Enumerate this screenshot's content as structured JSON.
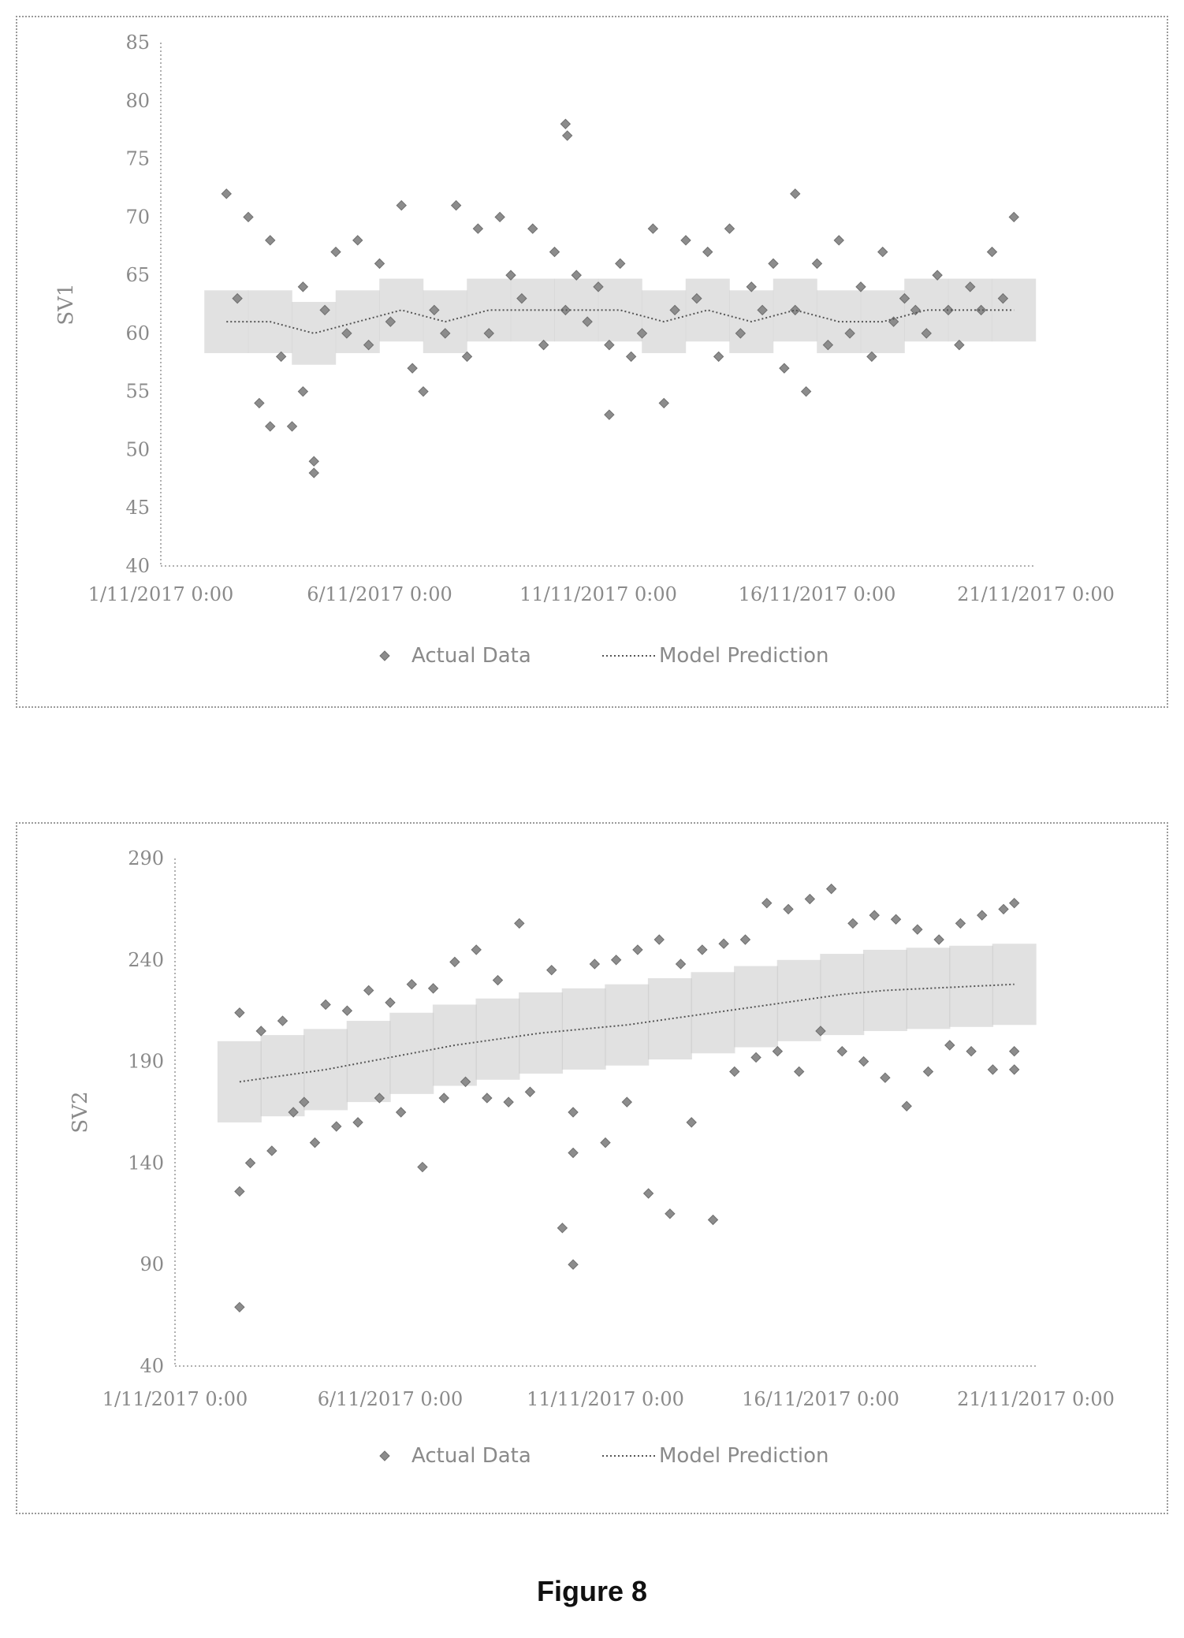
{
  "figure_caption": "Figure 8",
  "chart_data": [
    {
      "type": "scatter",
      "ylabel": "SV1",
      "xlabel": "",
      "ylim": [
        40,
        85
      ],
      "yticks": [
        40,
        45,
        50,
        55,
        60,
        65,
        70,
        75,
        80,
        85
      ],
      "xlim": [
        "2017-11-01",
        "2017-11-21"
      ],
      "xticks": [
        "1/11/2017 0:00",
        "6/11/2017 0:00",
        "11/11/2017 0:00",
        "16/11/2017 0:00",
        "21/11/2017 0:00"
      ],
      "grid": false,
      "legend": {
        "position": "bottom",
        "entries": [
          "Actual Data",
          "Model Prediction"
        ]
      },
      "series": [
        {
          "name": "Actual Data",
          "marker": "diamond",
          "x": [
            "2017-11-02 12:00",
            "2017-11-02 18:00",
            "2017-11-03 00:00",
            "2017-11-03 06:00",
            "2017-11-03 12:00",
            "2017-11-03 18:00",
            "2017-11-04 00:00",
            "2017-11-04 06:00",
            "2017-11-04 12:00",
            "2017-11-04 18:00",
            "2017-11-05 00:00",
            "2017-11-05 06:00",
            "2017-11-05 12:00",
            "2017-11-05 18:00",
            "2017-11-06 00:00",
            "2017-11-06 06:00",
            "2017-11-06 12:00",
            "2017-11-06 18:00",
            "2017-11-07 00:00",
            "2017-11-07 06:00",
            "2017-11-07 12:00",
            "2017-11-07 18:00",
            "2017-11-08 00:00",
            "2017-11-08 06:00",
            "2017-11-08 12:00",
            "2017-11-08 18:00",
            "2017-11-09 00:00",
            "2017-11-09 06:00",
            "2017-11-09 12:00",
            "2017-11-09 18:00",
            "2017-11-10 00:00",
            "2017-11-10 06:00",
            "2017-11-10 12:00",
            "2017-11-10 18:00",
            "2017-11-11 00:00",
            "2017-11-11 06:00",
            "2017-11-11 12:00",
            "2017-11-11 18:00",
            "2017-11-12 00:00",
            "2017-11-12 06:00",
            "2017-11-12 12:00",
            "2017-11-12 18:00",
            "2017-11-13 00:00",
            "2017-11-13 06:00",
            "2017-11-13 12:00",
            "2017-11-13 18:00",
            "2017-11-14 00:00",
            "2017-11-14 06:00",
            "2017-11-14 12:00",
            "2017-11-14 18:00",
            "2017-11-15 00:00",
            "2017-11-15 06:00",
            "2017-11-15 12:00",
            "2017-11-15 18:00",
            "2017-11-16 00:00",
            "2017-11-16 06:00",
            "2017-11-16 12:00",
            "2017-11-16 18:00",
            "2017-11-17 00:00",
            "2017-11-17 06:00",
            "2017-11-17 12:00",
            "2017-11-17 18:00",
            "2017-11-18 00:00",
            "2017-11-18 06:00",
            "2017-11-18 12:00",
            "2017-11-18 18:00",
            "2017-11-19 00:00",
            "2017-11-19 06:00",
            "2017-11-19 12:00",
            "2017-11-19 18:00",
            "2017-11-20 00:00",
            "2017-11-20 06:00",
            "2017-11-20 12:00",
            "2017-11-03 12:00",
            "2017-11-04 06:00",
            "2017-11-04 12:00",
            "2017-11-10 06:00",
            "2017-11-10 07:00",
            "2017-11-11 06:00",
            "2017-11-15 12:00"
          ],
          "y": [
            72,
            63,
            70,
            54,
            68,
            58,
            52,
            64,
            48,
            62,
            67,
            60,
            68,
            59,
            66,
            61,
            71,
            57,
            55,
            62,
            60,
            71,
            58,
            69,
            60,
            70,
            65,
            63,
            69,
            59,
            67,
            62,
            65,
            61,
            64,
            59,
            66,
            58,
            60,
            69,
            54,
            62,
            68,
            63,
            67,
            58,
            69,
            60,
            64,
            62,
            66,
            57,
            72,
            55,
            66,
            59,
            68,
            60,
            64,
            58,
            67,
            61,
            63,
            62,
            60,
            65,
            62,
            59,
            64,
            62,
            67,
            63,
            70,
            52,
            55,
            49,
            78,
            77,
            53,
            62
          ]
        },
        {
          "name": "Model Prediction",
          "line": "dotted",
          "x": [
            "2017-11-02 12:00",
            "2017-11-03 12:00",
            "2017-11-04 12:00",
            "2017-11-05 12:00",
            "2017-11-06 12:00",
            "2017-11-07 12:00",
            "2017-11-08 12:00",
            "2017-11-09 12:00",
            "2017-11-10 12:00",
            "2017-11-11 12:00",
            "2017-11-12 12:00",
            "2017-11-13 12:00",
            "2017-11-14 12:00",
            "2017-11-15 12:00",
            "2017-11-16 12:00",
            "2017-11-17 12:00",
            "2017-11-18 12:00",
            "2017-11-19 12:00",
            "2017-11-20 12:00"
          ],
          "y": [
            61,
            61,
            60,
            61,
            62,
            61,
            62,
            62,
            62,
            62,
            61,
            62,
            61,
            62,
            61,
            61,
            62,
            62,
            62
          ]
        }
      ]
    },
    {
      "type": "scatter",
      "ylabel": "SV2",
      "xlabel": "",
      "ylim": [
        40,
        290
      ],
      "yticks": [
        40,
        90,
        140,
        190,
        240,
        290
      ],
      "xlim": [
        "2017-11-01",
        "2017-11-21"
      ],
      "xticks": [
        "1/11/2017 0:00",
        "6/11/2017 0:00",
        "11/11/2017 0:00",
        "16/11/2017 0:00",
        "21/11/2017 0:00"
      ],
      "grid": false,
      "legend": {
        "position": "bottom",
        "entries": [
          "Actual Data",
          "Model Prediction"
        ]
      },
      "series": [
        {
          "name": "Actual Data",
          "marker": "diamond",
          "x": [
            "2017-11-02 12:00",
            "2017-11-02 12:00",
            "2017-11-02 12:00",
            "2017-11-02 18:00",
            "2017-11-03 00:00",
            "2017-11-03 06:00",
            "2017-11-03 12:00",
            "2017-11-03 18:00",
            "2017-11-04 00:00",
            "2017-11-04 06:00",
            "2017-11-04 12:00",
            "2017-11-04 18:00",
            "2017-11-05 00:00",
            "2017-11-05 06:00",
            "2017-11-05 12:00",
            "2017-11-05 18:00",
            "2017-11-06 00:00",
            "2017-11-06 06:00",
            "2017-11-06 12:00",
            "2017-11-06 18:00",
            "2017-11-07 00:00",
            "2017-11-07 06:00",
            "2017-11-07 12:00",
            "2017-11-07 18:00",
            "2017-11-08 00:00",
            "2017-11-08 06:00",
            "2017-11-08 12:00",
            "2017-11-08 18:00",
            "2017-11-09 00:00",
            "2017-11-09 06:00",
            "2017-11-09 18:00",
            "2017-11-10 00:00",
            "2017-11-10 06:00",
            "2017-11-10 06:00",
            "2017-11-10 06:00",
            "2017-11-10 18:00",
            "2017-11-11 00:00",
            "2017-11-11 06:00",
            "2017-11-11 12:00",
            "2017-11-11 18:00",
            "2017-11-12 00:00",
            "2017-11-12 06:00",
            "2017-11-12 12:00",
            "2017-11-12 18:00",
            "2017-11-13 00:00",
            "2017-11-13 06:00",
            "2017-11-13 12:00",
            "2017-11-13 18:00",
            "2017-11-14 00:00",
            "2017-11-14 06:00",
            "2017-11-14 12:00",
            "2017-11-14 18:00",
            "2017-11-15 00:00",
            "2017-11-15 06:00",
            "2017-11-15 12:00",
            "2017-11-15 18:00",
            "2017-11-16 00:00",
            "2017-11-16 06:00",
            "2017-11-16 12:00",
            "2017-11-16 18:00",
            "2017-11-17 00:00",
            "2017-11-17 06:00",
            "2017-11-17 12:00",
            "2017-11-17 18:00",
            "2017-11-18 00:00",
            "2017-11-18 06:00",
            "2017-11-18 12:00",
            "2017-11-18 18:00",
            "2017-11-19 00:00",
            "2017-11-19 06:00",
            "2017-11-19 12:00",
            "2017-11-19 18:00",
            "2017-11-20 00:00",
            "2017-11-20 06:00",
            "2017-11-20 12:00",
            "2017-11-20 12:00",
            "2017-11-20 12:00"
          ],
          "y": [
            214,
            126,
            69,
            140,
            205,
            146,
            210,
            165,
            170,
            150,
            218,
            158,
            215,
            160,
            225,
            172,
            219,
            165,
            228,
            138,
            226,
            172,
            239,
            180,
            245,
            172,
            230,
            170,
            258,
            175,
            235,
            108,
            90,
            145,
            165,
            238,
            150,
            240,
            170,
            245,
            125,
            250,
            115,
            238,
            160,
            245,
            112,
            248,
            185,
            250,
            192,
            268,
            195,
            265,
            185,
            270,
            205,
            275,
            195,
            258,
            190,
            262,
            182,
            260,
            168,
            255,
            185,
            250,
            198,
            258,
            195,
            262,
            186,
            265,
            195,
            268,
            186
          ]
        },
        {
          "name": "Model Prediction",
          "line": "dotted",
          "x": [
            "2017-11-02 12:00",
            "2017-11-03 12:00",
            "2017-11-04 12:00",
            "2017-11-05 12:00",
            "2017-11-06 12:00",
            "2017-11-07 12:00",
            "2017-11-08 12:00",
            "2017-11-09 12:00",
            "2017-11-10 12:00",
            "2017-11-11 12:00",
            "2017-11-12 12:00",
            "2017-11-13 12:00",
            "2017-11-14 12:00",
            "2017-11-15 12:00",
            "2017-11-16 12:00",
            "2017-11-17 12:00",
            "2017-11-18 12:00",
            "2017-11-19 12:00",
            "2017-11-20 12:00"
          ],
          "y": [
            180,
            183,
            186,
            190,
            194,
            198,
            201,
            204,
            206,
            208,
            211,
            214,
            217,
            220,
            223,
            225,
            226,
            227,
            228
          ]
        }
      ]
    }
  ]
}
